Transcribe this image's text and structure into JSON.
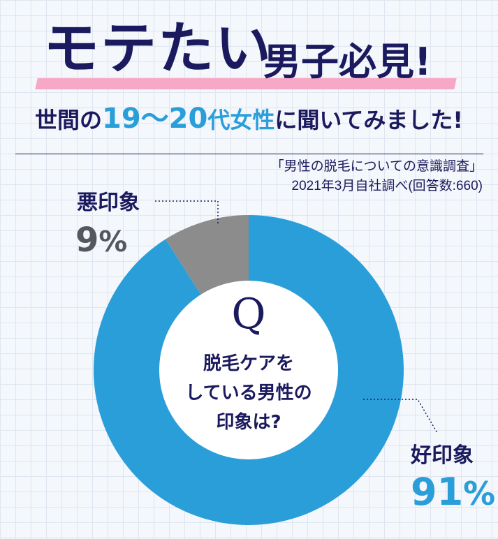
{
  "title": {
    "main": "モテたい",
    "sub": "男子必見!"
  },
  "subtitle": {
    "part1": "世間の",
    "age": "19〜20",
    "dai": "代",
    "gender": "女性",
    "part2": "に聞いてみました!"
  },
  "source": {
    "line1": "「男性の脱毛についての意識調査」",
    "line2": "2021年3月自社調べ(回答数:660)"
  },
  "center": {
    "q": "Q",
    "lines": [
      "脱毛ケアを",
      "している男性の",
      "印象は?"
    ]
  },
  "labels": {
    "bad_name": "悪印象",
    "bad_value": "9",
    "good_name": "好印象",
    "good_value": "91",
    "unit": "%"
  },
  "colors": {
    "good": "#2a9ed9",
    "bad": "#8c8c8c",
    "navy": "#1b1a5e"
  },
  "chart_data": {
    "type": "pie",
    "donut": true,
    "categories": [
      "好印象",
      "悪印象"
    ],
    "values": [
      91,
      9
    ],
    "unit": "%"
  }
}
